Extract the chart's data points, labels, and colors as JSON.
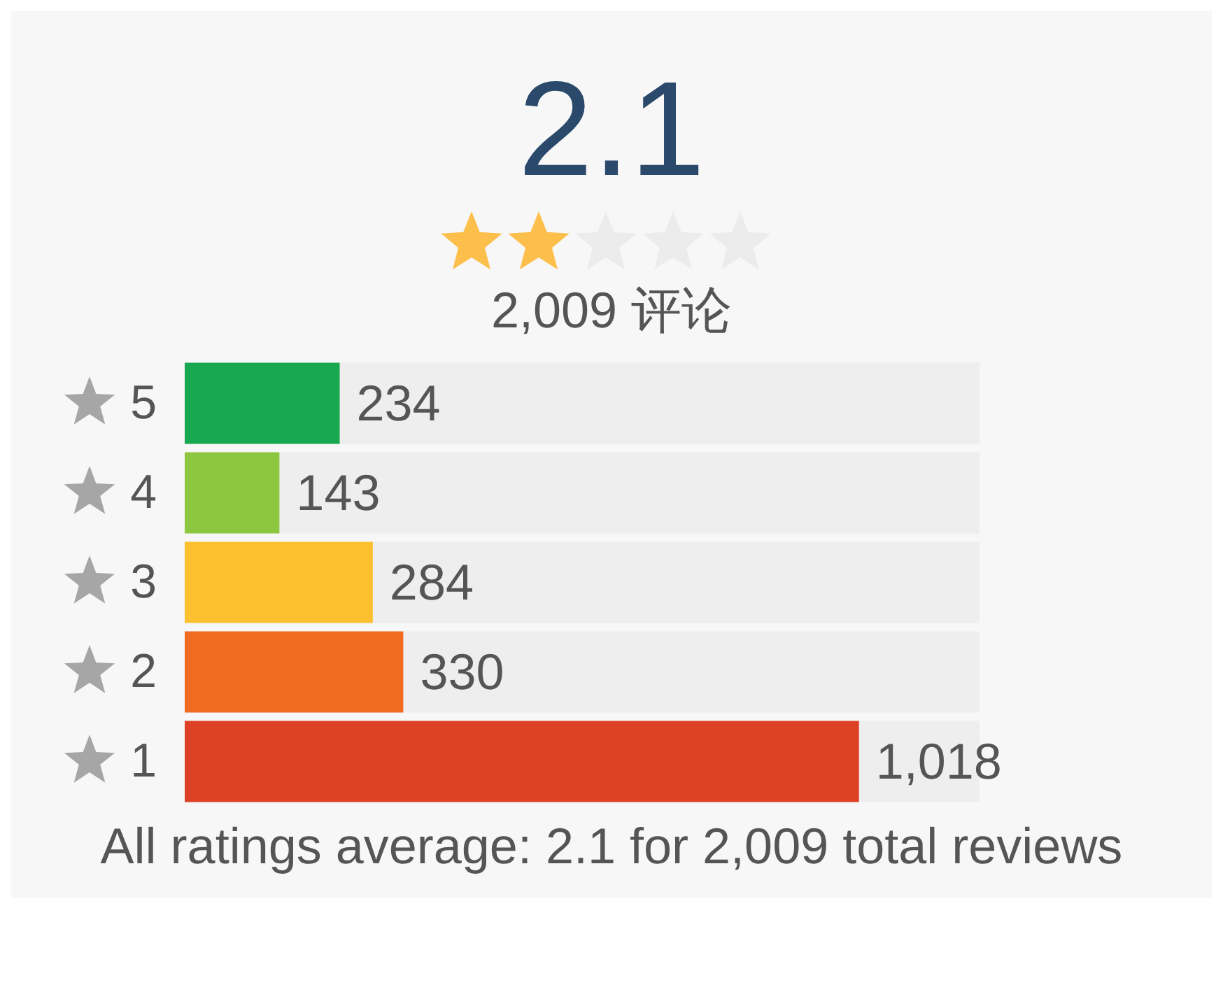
{
  "chart_data": {
    "type": "bar",
    "orientation": "horizontal",
    "title": "2.1",
    "subtitle": "2,009 评论",
    "categories": [
      "5",
      "4",
      "3",
      "2",
      "1"
    ],
    "values": [
      234,
      143,
      284,
      330,
      1018
    ],
    "colors": [
      "#18a84f",
      "#8dc63f",
      "#fdc130",
      "#f06a1f",
      "#dd4126"
    ],
    "value_labels": [
      "234",
      "143",
      "284",
      "330",
      "1,018"
    ],
    "tick_labels": "y",
    "annotations": [
      "All ratings average: 2.1 for 2,009 total reviews"
    ]
  }
}
